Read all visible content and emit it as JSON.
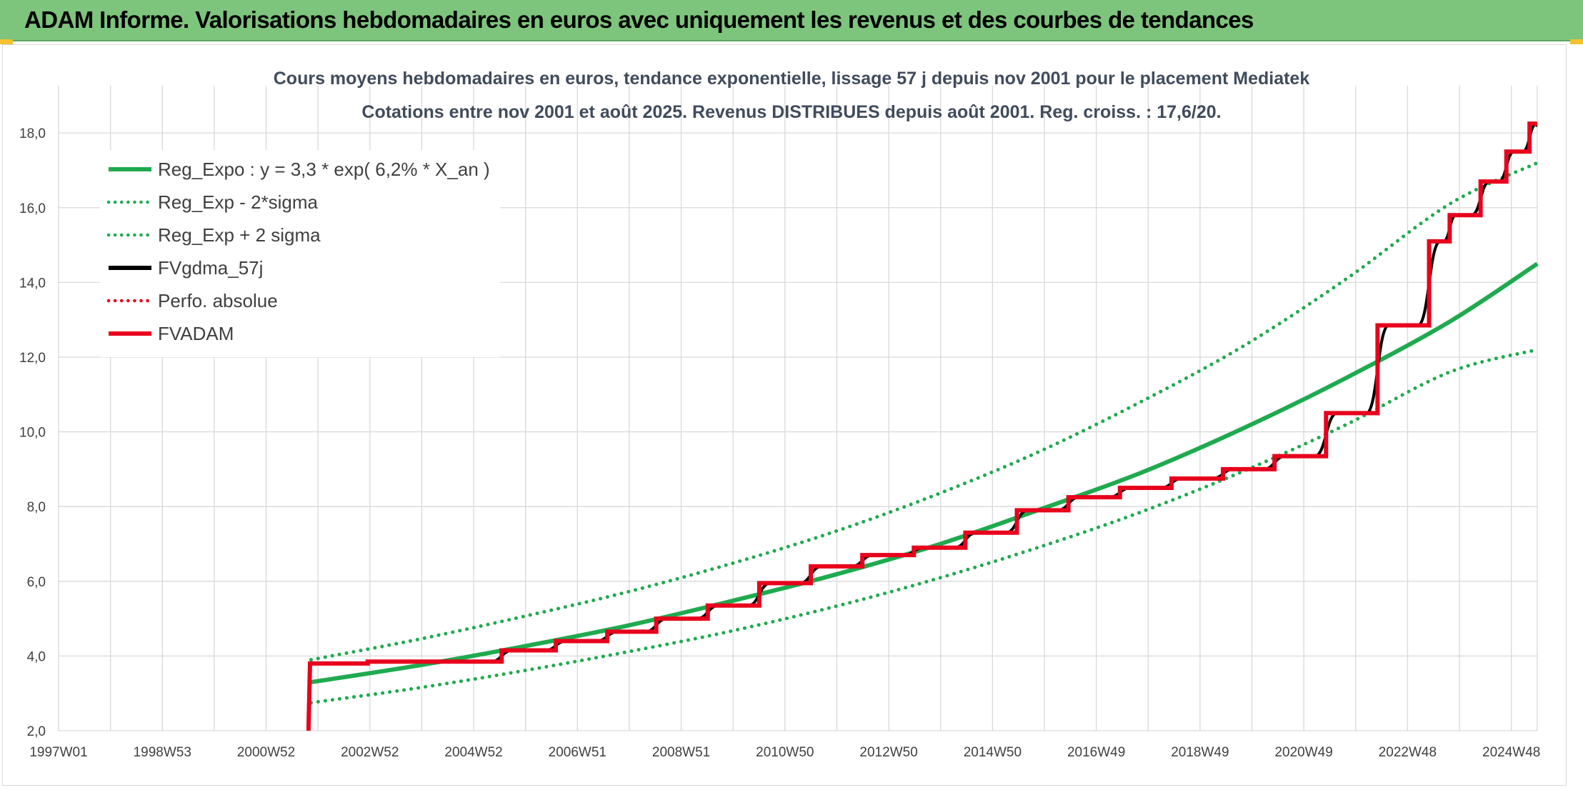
{
  "header": {
    "title": "ADAM Informe. Valorisations hebdomadaires en euros avec uniquement les revenus et des courbes de tendances"
  },
  "colors": {
    "header_bg": "#7dc47c",
    "reg_green": "#1faa4f",
    "fvadam_red": "#e8001c",
    "fvgdma_black": "#000000",
    "grid": "#d9d9d9"
  },
  "chart_data": {
    "type": "line",
    "title_lines": [
      "Cours moyens hebdomadaires en euros, tendance exponentielle, lissage 57 j depuis nov 2001 pour le placement Mediatek",
      "Cotations entre nov 2001 et août 2025. Revenus DISTRIBUES depuis août 2001. Reg. croiss. : 17,6/20."
    ],
    "x_tick_labels": [
      "1997W01",
      "1998W53",
      "2000W52",
      "2002W52",
      "2004W52",
      "2006W51",
      "2008W51",
      "2010W50",
      "2012W50",
      "2014W50",
      "2016W49",
      "2018W49",
      "2020W49",
      "2022W48",
      "2024W48"
    ],
    "x_range": [
      1997.0,
      2025.7
    ],
    "y_tick_labels": [
      "2,0",
      "4,0",
      "6,0",
      "8,0",
      "10,0",
      "12,0",
      "14,0",
      "16,0",
      "18,0"
    ],
    "ylim": [
      2.0,
      18.5
    ],
    "grid": true,
    "legend_position": "top-left",
    "legend": [
      {
        "name": "Reg_Expo : y = 3,3 * exp( 6,2% *  X_an )",
        "color": "#1faa4f",
        "style": "solid"
      },
      {
        "name": "Reg_Exp - 2*sigma",
        "color": "#1faa4f",
        "style": "dotted"
      },
      {
        "name": "Reg_Exp + 2 sigma",
        "color": "#1faa4f",
        "style": "dotted"
      },
      {
        "name": "FVgdma_57j",
        "color": "#000000",
        "style": "solid"
      },
      {
        "name": "Perfo. absolue",
        "color": "#e8001c",
        "style": "dotted"
      },
      {
        "name": "FVADAM",
        "color": "#e8001c",
        "style": "solid"
      }
    ],
    "series": [
      {
        "name": "Reg_Expo : y = 3,3 * exp( 6,2% *  X_an )",
        "x": [
          2001.9,
          2004.0,
          2006.0,
          2008.0,
          2010.0,
          2012.0,
          2014.0,
          2016.0,
          2018.0,
          2020.0,
          2022.0,
          2024.0,
          2025.7
        ],
        "values": [
          3.3,
          3.75,
          4.25,
          4.8,
          5.45,
          6.15,
          6.95,
          7.9,
          8.9,
          10.1,
          11.45,
          12.95,
          14.5
        ]
      },
      {
        "name": "Reg_Exp - 2*sigma",
        "x": [
          2001.9,
          2004.0,
          2006.0,
          2008.0,
          2010.0,
          2012.0,
          2014.0,
          2016.0,
          2018.0,
          2020.0,
          2022.0,
          2024.0,
          2025.7
        ],
        "values": [
          2.75,
          3.15,
          3.6,
          4.1,
          4.65,
          5.3,
          6.05,
          6.9,
          7.85,
          8.95,
          10.2,
          11.6,
          12.2
        ]
      },
      {
        "name": "Reg_Exp + 2 sigma",
        "x": [
          2001.9,
          2004.0,
          2006.0,
          2008.0,
          2010.0,
          2012.0,
          2014.0,
          2016.0,
          2018.0,
          2020.0,
          2022.0,
          2024.0,
          2025.7
        ],
        "values": [
          3.9,
          4.45,
          5.05,
          5.7,
          6.45,
          7.3,
          8.3,
          9.45,
          10.8,
          12.3,
          14.1,
          16.1,
          17.2
        ]
      },
      {
        "name": "FVADAM",
        "steps": [
          {
            "x": 2001.85,
            "y": 2.0
          },
          {
            "x": 2001.88,
            "y": 3.8
          },
          {
            "x": 2003.0,
            "y": 3.85
          },
          {
            "x": 2005.6,
            "y": 4.15
          },
          {
            "x": 2006.65,
            "y": 4.4
          },
          {
            "x": 2007.65,
            "y": 4.65
          },
          {
            "x": 2008.6,
            "y": 5.0
          },
          {
            "x": 2009.6,
            "y": 5.35
          },
          {
            "x": 2010.6,
            "y": 5.95
          },
          {
            "x": 2011.6,
            "y": 6.4
          },
          {
            "x": 2012.6,
            "y": 6.7
          },
          {
            "x": 2013.6,
            "y": 6.9
          },
          {
            "x": 2014.6,
            "y": 7.3
          },
          {
            "x": 2015.6,
            "y": 7.9
          },
          {
            "x": 2016.6,
            "y": 8.25
          },
          {
            "x": 2017.6,
            "y": 8.5
          },
          {
            "x": 2018.6,
            "y": 8.75
          },
          {
            "x": 2019.6,
            "y": 9.0
          },
          {
            "x": 2020.6,
            "y": 9.35
          },
          {
            "x": 2021.6,
            "y": 10.5
          },
          {
            "x": 2022.6,
            "y": 12.85
          },
          {
            "x": 2023.6,
            "y": 15.1
          },
          {
            "x": 2024.0,
            "y": 15.8
          },
          {
            "x": 2024.6,
            "y": 16.7
          },
          {
            "x": 2025.1,
            "y": 17.5
          },
          {
            "x": 2025.55,
            "y": 18.25
          }
        ],
        "x_end": 2025.7
      }
    ]
  }
}
